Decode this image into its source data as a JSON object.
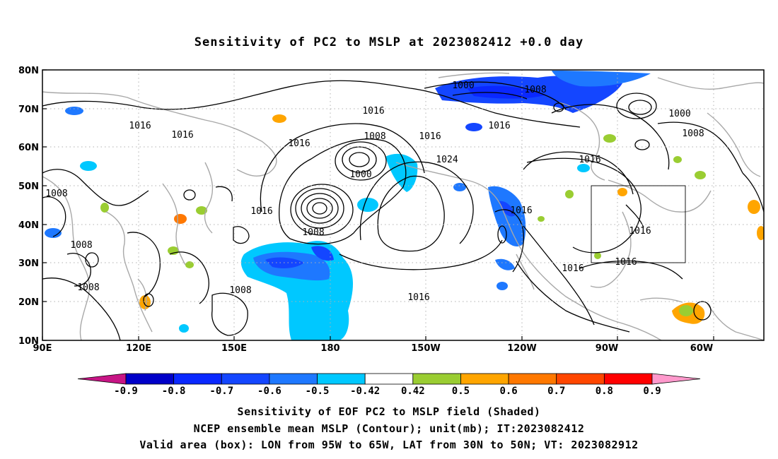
{
  "title": "Sensitivity of PC2 to MSLP at 2023082412 +0.0 day",
  "lat_labels": [
    "80N",
    "70N",
    "60N",
    "50N",
    "40N",
    "30N",
    "20N",
    "10N"
  ],
  "lon_labels": [
    "90E",
    "120E",
    "150E",
    "180",
    "150W",
    "120W",
    "90W",
    "60W"
  ],
  "colorbar": {
    "colors": [
      "#c71585",
      "#0000c8",
      "#0a28ff",
      "#1446ff",
      "#1e78ff",
      "#00c8ff",
      "#ffffff",
      "#9acd32",
      "#ffa500",
      "#ff7800",
      "#ff4600",
      "#ff0000",
      "#ff99cc"
    ],
    "labels": [
      "-0.9",
      "-0.8",
      "-0.7",
      "-0.6",
      "-0.5",
      "-0.42",
      "0.42",
      "0.5",
      "0.6",
      "0.7",
      "0.8",
      "0.9"
    ]
  },
  "contour_labels": [
    {
      "text": "1000"
    },
    {
      "text": "1008"
    },
    {
      "text": "1016"
    },
    {
      "text": "1000"
    },
    {
      "text": "1008"
    },
    {
      "text": "1016"
    },
    {
      "text": "1016"
    },
    {
      "text": "1016"
    },
    {
      "text": "1016"
    },
    {
      "text": "1008"
    },
    {
      "text": "1016"
    },
    {
      "text": "1024"
    },
    {
      "text": "1000"
    },
    {
      "text": "1016"
    },
    {
      "text": "1008"
    },
    {
      "text": "1016"
    },
    {
      "text": "1008"
    },
    {
      "text": "1016"
    },
    {
      "text": "1008"
    },
    {
      "text": "1016"
    },
    {
      "text": "1016"
    },
    {
      "text": "1008"
    },
    {
      "text": "1016"
    },
    {
      "text": "1016"
    }
  ],
  "captions": [
    "Sensitivity of EOF PC2 to MSLP field (Shaded)",
    "NCEP ensemble mean MSLP (Contour); unit(mb); IT:2023082412",
    "Valid area (box): LON from 95W to 65W, LAT from 30N to 50N; VT: 2023082912"
  ],
  "valid_box": {
    "lon_west": "95W",
    "lon_east": "65W",
    "lat_south": "30N",
    "lat_north": "50N"
  }
}
